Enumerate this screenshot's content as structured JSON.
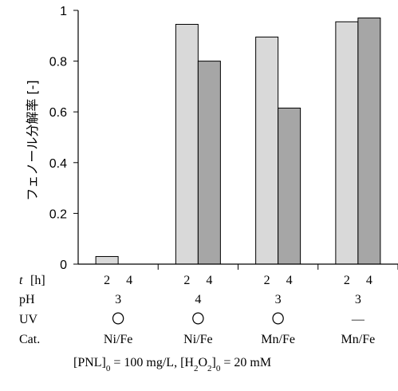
{
  "chart_data": {
    "type": "bar",
    "ylabel": "フェノール分解率 [-]",
    "ylim": [
      0,
      1
    ],
    "yticks": [
      "0",
      "0.2",
      "0.4",
      "0.6",
      "0.8",
      "1"
    ],
    "ytick_values": [
      0,
      0.2,
      0.4,
      0.6,
      0.8,
      1
    ],
    "grid": false,
    "series": [
      {
        "name": "t = 2 h",
        "color": "#d9d9d9",
        "values": [
          0.03,
          0.945,
          0.895,
          0.955
        ]
      },
      {
        "name": "t = 4 h",
        "color": "#a6a6a6",
        "values": [
          0,
          0.8,
          0.615,
          0.97
        ]
      }
    ],
    "conditions": {
      "t_label": "t",
      "t_unit": "[h]",
      "t_values": [
        "2",
        "4"
      ],
      "pH_label": "pH",
      "pH": [
        "3",
        "4",
        "3",
        "3"
      ],
      "UV_label": "UV",
      "UV": [
        "〇",
        "〇",
        "〇",
        "—"
      ],
      "Cat_label": "Cat.",
      "Cat": [
        "Ni/Fe",
        "Ni/Fe",
        "Mn/Fe",
        "Mn/Fe"
      ]
    },
    "footnote": {
      "pnl_open": "[PNL]",
      "pnl_sub": "0",
      "pnl_value": " = 100 mg/L,",
      "h2o2_open": "[H",
      "h2o2_sub1": "2",
      "h2o2_mid": "O",
      "h2o2_sub2": "2",
      "h2o2_close": "]",
      "h2o2_sub0": "0",
      "h2o2_value": " = 20 mM"
    }
  }
}
